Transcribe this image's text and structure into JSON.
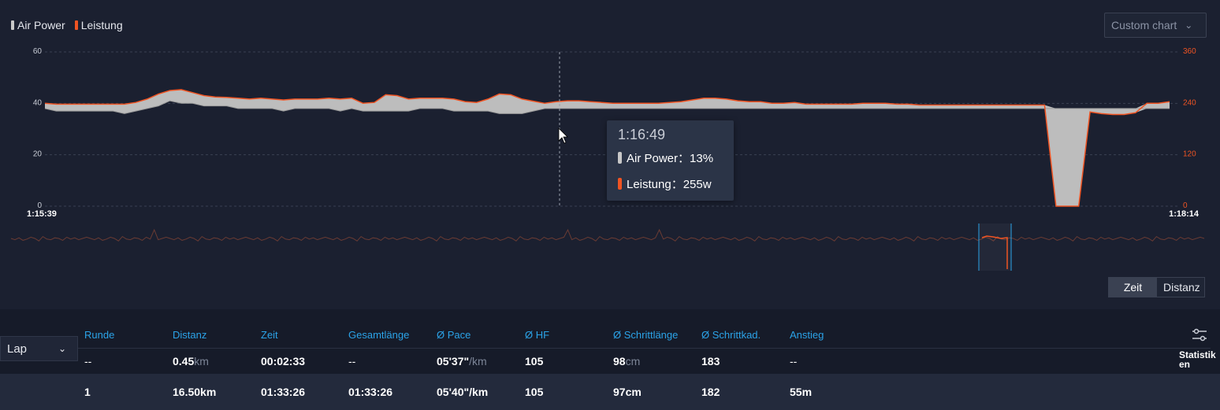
{
  "legend": [
    {
      "label": "Air Power",
      "color": "#c8c8c8"
    },
    {
      "label": "Leistung",
      "color": "#f05423"
    }
  ],
  "custom_chart_label": "Custom chart",
  "tooltip": {
    "time": "1:16:49",
    "rows": [
      {
        "label": "Air Power：13%",
        "color": "#c8c8c8"
      },
      {
        "label": "Leistung：255w",
        "color": "#f05423"
      }
    ]
  },
  "toggle": {
    "zeit": "Zeit",
    "distanz": "Distanz"
  },
  "lap_select": "Lap",
  "table": {
    "headers": [
      "Runde",
      "Distanz",
      "Zeit",
      "Gesamtlänge",
      "Ø Pace",
      "Ø HF",
      "Ø Schrittlänge",
      "Ø Schrittkad.",
      "Anstieg"
    ],
    "rows": [
      {
        "runde": "--",
        "distanz": "0.45",
        "distanz_unit": "km",
        "zeit": "00:02:33",
        "gesamt": "--",
        "pace": "05'37\"",
        "pace_unit": "/km",
        "hf": "105",
        "schritt": "98",
        "schritt_unit": "cm",
        "kad": "183",
        "anstieg": "--"
      },
      {
        "runde": "1",
        "distanz": "16.50km",
        "zeit": "01:33:26",
        "gesamt": "01:33:26",
        "pace": "05'40\"/km",
        "hf": "105",
        "schritt": "97cm",
        "kad": "182",
        "anstieg": "55m"
      }
    ],
    "stats_label": "Statistik en"
  },
  "colors": {
    "air_power": "#c8c8c8",
    "leistung": "#f05423",
    "accent": "#2ba3e8"
  },
  "chart_data": {
    "type": "area",
    "x_start_label": "1:15:39",
    "x_end_label": "1:18:14",
    "left_axis": {
      "ticks": [
        "60",
        "40",
        "20",
        "0"
      ],
      "range": [
        0,
        60
      ]
    },
    "right_axis": {
      "ticks": [
        "360",
        "240",
        "120",
        "0"
      ],
      "range": [
        0,
        360
      ]
    },
    "grid": true,
    "series": [
      {
        "name": "Air Power",
        "values": [
          38,
          37,
          37,
          37,
          37,
          37,
          37,
          36,
          37,
          38,
          39,
          41,
          40,
          40,
          39,
          39,
          39,
          38,
          38,
          38,
          38,
          37,
          38,
          38,
          38,
          38,
          37,
          38,
          37,
          37,
          37,
          37,
          37,
          38,
          38,
          38,
          37,
          37,
          37,
          37,
          36,
          36,
          36,
          37,
          38,
          38,
          38,
          38,
          38,
          38,
          38,
          38,
          38,
          38,
          38,
          38,
          38,
          38,
          38,
          38,
          38,
          38,
          38,
          38,
          38,
          38,
          38,
          38,
          38,
          38,
          38,
          38,
          38,
          38,
          38,
          38,
          38,
          38,
          38,
          38,
          38,
          38,
          38,
          38,
          38,
          38,
          38,
          38,
          38,
          38,
          38,
          38,
          38,
          38,
          38,
          38,
          38,
          38,
          38,
          38
        ]
      },
      {
        "name": "Leistung",
        "values": [
          240,
          238,
          238,
          238,
          238,
          238,
          238,
          238,
          242,
          250,
          262,
          270,
          272,
          265,
          258,
          255,
          254,
          252,
          250,
          252,
          250,
          248,
          250,
          250,
          250,
          252,
          250,
          252,
          240,
          242,
          260,
          258,
          250,
          252,
          252,
          252,
          250,
          244,
          242,
          250,
          262,
          260,
          250,
          245,
          240,
          244,
          246,
          246,
          244,
          242,
          240,
          240,
          240,
          240,
          240,
          242,
          244,
          248,
          252,
          252,
          250,
          246,
          244,
          244,
          240,
          240,
          242,
          238,
          238,
          238,
          238,
          238,
          240,
          240,
          240,
          238,
          238,
          236,
          236,
          236,
          236,
          236,
          236,
          236,
          236,
          236,
          236,
          236,
          236,
          0,
          0,
          0,
          220,
          216,
          214,
          214,
          218,
          240,
          240,
          244
        ]
      }
    ]
  }
}
